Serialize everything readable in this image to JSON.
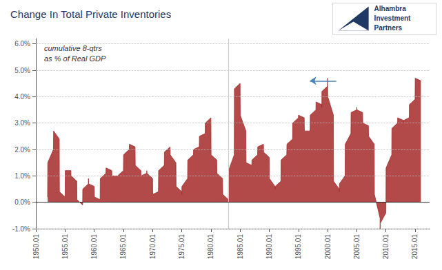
{
  "chart_data": {
    "type": "area",
    "title": "Change In Total Private Inventories",
    "subtitle": [
      "cumulative 8-qtrs",
      "as % of Real GDP"
    ],
    "color": "#a52a2a",
    "grid": true,
    "x": [
      1952.01,
      1952.02,
      1952.03,
      1952.04,
      1953.01,
      1953.02,
      1953.03,
      1953.04,
      1954.01,
      1954.02,
      1954.03,
      1954.04,
      1955.01,
      1955.02,
      1955.03,
      1955.04,
      1956.01,
      1956.02,
      1956.03,
      1956.04,
      1957.01,
      1957.02,
      1957.03,
      1957.04,
      1958.01,
      1958.02,
      1958.03,
      1958.04,
      1959.01,
      1959.02,
      1959.03,
      1959.04,
      1960.01,
      1960.02,
      1960.03,
      1960.04,
      1961.01,
      1961.02,
      1961.03,
      1961.04,
      1962.01,
      1962.02,
      1962.03,
      1962.04,
      1963.01,
      1963.02,
      1963.03,
      1963.04,
      1964.01,
      1964.02,
      1964.03,
      1964.04,
      1965.01,
      1965.02,
      1965.03,
      1965.04,
      1966.01,
      1966.02,
      1966.03,
      1966.04,
      1967.01,
      1967.02,
      1967.03,
      1967.04,
      1968.01,
      1968.02,
      1968.03,
      1968.04,
      1969.01,
      1969.02,
      1969.03,
      1969.04,
      1970.01,
      1970.02,
      1970.03,
      1970.04,
      1971.01,
      1971.02,
      1971.03,
      1971.04,
      1972.01,
      1972.02,
      1972.03,
      1972.04,
      1973.01,
      1973.02,
      1973.03,
      1973.04,
      1974.01,
      1974.02,
      1974.03,
      1974.04,
      1975.01,
      1975.02,
      1975.03,
      1975.04,
      1976.01,
      1976.02,
      1976.03,
      1976.04,
      1977.01,
      1977.02,
      1977.03,
      1977.04,
      1978.01,
      1978.02,
      1978.03,
      1978.04,
      1979.01,
      1979.02,
      1979.03,
      1979.04,
      1980.01,
      1980.02,
      1980.03,
      1980.04,
      1981.01,
      1981.02,
      1981.03,
      1981.04,
      1982.01,
      1982.02,
      1982.03,
      1982.04,
      1983.01,
      1983.02,
      1983.03,
      1983.04,
      1984.01,
      1984.02,
      1984.03,
      1984.04,
      1985.01,
      1985.02,
      1985.03,
      1985.04,
      1986.01,
      1986.02,
      1986.03,
      1986.04,
      1987.01,
      1987.02,
      1987.03,
      1987.04,
      1988.01,
      1988.02,
      1988.03,
      1988.04,
      1989.01,
      1989.02,
      1989.03,
      1989.04,
      1990.01,
      1990.02,
      1990.03,
      1990.04,
      1991.01,
      1991.02,
      1991.03,
      1991.04,
      1992.01,
      1992.02,
      1992.03,
      1992.04,
      1993.01,
      1993.02,
      1993.03,
      1993.04,
      1994.01,
      1994.02,
      1994.03,
      1994.04,
      1995.01,
      1995.02,
      1995.03,
      1995.04,
      1996.01,
      1996.02,
      1996.03,
      1996.04,
      1997.01,
      1997.02,
      1997.03,
      1997.04,
      1998.01,
      1998.02,
      1998.03,
      1998.04,
      1999.01,
      1999.02,
      1999.03,
      1999.04,
      2000.01,
      2000.02,
      2000.03,
      2000.04,
      2001.01,
      2001.02,
      2001.03,
      2001.04,
      2002.01,
      2002.02,
      2002.03,
      2002.04,
      2003.01,
      2003.02,
      2003.03,
      2003.04,
      2004.01,
      2004.02,
      2004.03,
      2004.04,
      2005.01,
      2005.02,
      2005.03,
      2005.04,
      2006.01,
      2006.02,
      2006.03,
      2006.04,
      2007.01,
      2007.02,
      2007.03,
      2007.04,
      2008.01,
      2008.02,
      2008.03,
      2008.04,
      2009.01,
      2009.02,
      2009.03,
      2009.04,
      2010.01,
      2010.02,
      2010.03,
      2010.04,
      2011.01,
      2011.02,
      2011.03,
      2011.04,
      2012.01,
      2012.02,
      2012.03,
      2012.04,
      2013.01,
      2013.02,
      2013.03,
      2013.04,
      2014.01,
      2014.02,
      2014.03,
      2014.04,
      2015.01,
      2015.02,
      2015.03,
      2015.04,
      2016.01
    ],
    "values": [
      0.002,
      0.005,
      0.01,
      0.015,
      0.02,
      0.022,
      0.025,
      0.027,
      0.024,
      0.018,
      0.01,
      0.004,
      0.002,
      0.005,
      0.009,
      0.012,
      0.012,
      0.011,
      0.01,
      0.01,
      0.008,
      0.007,
      0.005,
      0.001,
      -0.001,
      0.0,
      0.002,
      0.005,
      0.007,
      0.009,
      0.008,
      0.007,
      0.006,
      0.005,
      0.004,
      0.002,
      0.001,
      0.003,
      0.006,
      0.009,
      0.011,
      0.012,
      0.012,
      0.013,
      0.012,
      0.012,
      0.011,
      0.01,
      0.01,
      0.01,
      0.01,
      0.01,
      0.012,
      0.014,
      0.016,
      0.018,
      0.02,
      0.021,
      0.021,
      0.022,
      0.021,
      0.019,
      0.017,
      0.014,
      0.012,
      0.011,
      0.01,
      0.01,
      0.011,
      0.012,
      0.012,
      0.011,
      0.009,
      0.007,
      0.005,
      0.003,
      0.004,
      0.006,
      0.009,
      0.012,
      0.014,
      0.015,
      0.017,
      0.019,
      0.021,
      0.021,
      0.02,
      0.018,
      0.015,
      0.012,
      0.009,
      0.006,
      0.004,
      0.003,
      0.004,
      0.006,
      0.009,
      0.012,
      0.014,
      0.016,
      0.018,
      0.019,
      0.02,
      0.02,
      0.021,
      0.022,
      0.023,
      0.025,
      0.026,
      0.027,
      0.028,
      0.03,
      0.032,
      0.028,
      0.022,
      0.018,
      0.016,
      0.014,
      0.013,
      0.011,
      0.009,
      0.007,
      0.005,
      0.003,
      0.001,
      0.003,
      0.007,
      0.012,
      0.018,
      0.025,
      0.035,
      0.043,
      0.045,
      0.042,
      0.038,
      0.033,
      0.027,
      0.022,
      0.018,
      0.015,
      0.014,
      0.014,
      0.015,
      0.016,
      0.018,
      0.019,
      0.02,
      0.021,
      0.022,
      0.022,
      0.021,
      0.019,
      0.017,
      0.015,
      0.013,
      0.009,
      0.006,
      0.005,
      0.005,
      0.006,
      0.008,
      0.01,
      0.013,
      0.016,
      0.018,
      0.019,
      0.02,
      0.022,
      0.024,
      0.026,
      0.028,
      0.03,
      0.032,
      0.033,
      0.033,
      0.033,
      0.032,
      0.03,
      0.028,
      0.027,
      0.027,
      0.028,
      0.03,
      0.033,
      0.035,
      0.037,
      0.038,
      0.038,
      0.037,
      0.036,
      0.038,
      0.042,
      0.044,
      0.047,
      0.045,
      0.04,
      0.033,
      0.025,
      0.016,
      0.008,
      0.005,
      0.004,
      0.005,
      0.007,
      0.01,
      0.014,
      0.018,
      0.022,
      0.026,
      0.029,
      0.032,
      0.034,
      0.035,
      0.036,
      0.036,
      0.035,
      0.034,
      0.033,
      0.032,
      0.03,
      0.029,
      0.028,
      0.027,
      0.025,
      0.022,
      0.018,
      0.012,
      0.003,
      -0.006,
      -0.01,
      -0.01,
      -0.008,
      -0.004,
      0.001,
      0.007,
      0.013,
      0.018,
      0.022,
      0.026,
      0.028,
      0.03,
      0.031,
      0.032,
      0.032,
      0.031,
      0.03,
      0.03,
      0.031,
      0.032,
      0.033,
      0.035,
      0.037,
      0.039,
      0.042,
      0.045,
      0.047,
      0.046
    ],
    "xlim": [
      1950.0,
      2017.5
    ],
    "xticks": [
      1950.01,
      1955.01,
      1960.01,
      1965.01,
      1970.01,
      1975.01,
      1980.01,
      1985.01,
      1990.01,
      1995.01,
      2000.01,
      2005.01,
      2010.01,
      2015.01
    ],
    "ylim": [
      -0.01,
      0.062
    ],
    "yticks": [
      {
        "value": -0.01,
        "label": "-1.0%"
      },
      {
        "value": 0.0,
        "label": "0.0%"
      },
      {
        "value": 0.01,
        "label": "1.0%"
      },
      {
        "value": 0.02,
        "label": "2.0%"
      },
      {
        "value": 0.03,
        "label": "3.0%"
      },
      {
        "value": 0.04,
        "label": "4.0%"
      },
      {
        "value": 0.05,
        "label": "5.0%"
      },
      {
        "value": 0.06,
        "label": "6.0%"
      }
    ],
    "annotations": [
      {
        "text": "Alhambra"
      },
      {
        "text": "Investment"
      },
      {
        "text": "Partners"
      },
      {
        "x": 2001.5,
        "y": 0.046,
        "x_end": 1997.0,
        "y_end": 0.046
      },
      {
        "x": 1983.0
      },
      {
        "y": 0.0
      }
    ]
  }
}
